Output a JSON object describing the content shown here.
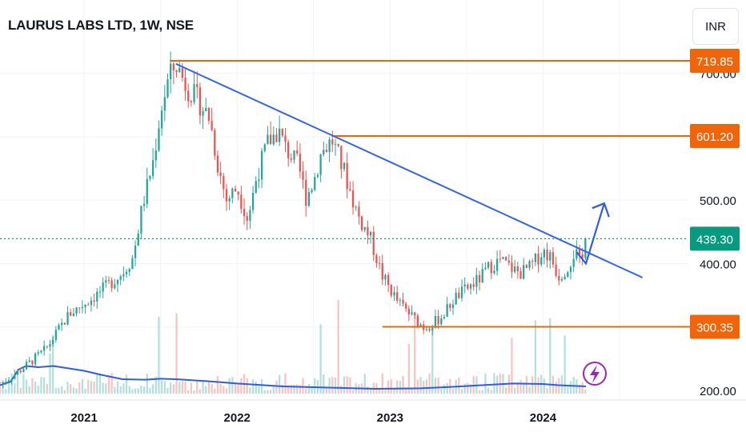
{
  "header": {
    "title": "LAURUS LABS LTD, 1W, NSE",
    "currency": "INR"
  },
  "colors": {
    "up": "#26a69a",
    "down": "#ef5350",
    "level": "#f0650a",
    "trend": "#3466e3",
    "avg": "#2f5ce0",
    "price_tag": "#089981",
    "lightning": "#9c27b0"
  },
  "chart_data": {
    "type": "candlestick",
    "ylim": [
      195,
      740
    ],
    "xlim": [
      2020.45,
      2024.95
    ],
    "y_ticks": [
      "700.00",
      "500.00",
      "400.00",
      "200.00"
    ],
    "x_ticks": [
      {
        "x": 2021.0,
        "label": "2021"
      },
      {
        "x": 2022.0,
        "label": "2022"
      },
      {
        "x": 2023.0,
        "label": "2023"
      },
      {
        "x": 2024.0,
        "label": "2024"
      }
    ],
    "grid": true,
    "price_keypoints": [
      [
        2020.45,
        210
      ],
      [
        2020.6,
        235
      ],
      [
        2020.75,
        265
      ],
      [
        2020.9,
        320
      ],
      [
        2021.05,
        345
      ],
      [
        2021.15,
        365
      ],
      [
        2021.25,
        385
      ],
      [
        2021.32,
        410
      ],
      [
        2021.38,
        490
      ],
      [
        2021.45,
        560
      ],
      [
        2021.5,
        640
      ],
      [
        2021.55,
        690
      ],
      [
        2021.6,
        715
      ],
      [
        2021.67,
        680
      ],
      [
        2021.75,
        655
      ],
      [
        2021.82,
        630
      ],
      [
        2021.87,
        560
      ],
      [
        2021.93,
        500
      ],
      [
        2022.0,
        520
      ],
      [
        2022.07,
        470
      ],
      [
        2022.13,
        540
      ],
      [
        2022.2,
        590
      ],
      [
        2022.27,
        610
      ],
      [
        2022.32,
        580
      ],
      [
        2022.4,
        555
      ],
      [
        2022.45,
        505
      ],
      [
        2022.5,
        530
      ],
      [
        2022.55,
        575
      ],
      [
        2022.62,
        595
      ],
      [
        2022.7,
        545
      ],
      [
        2022.75,
        505
      ],
      [
        2022.8,
        470
      ],
      [
        2022.87,
        440
      ],
      [
        2022.95,
        380
      ],
      [
        2023.05,
        340
      ],
      [
        2023.15,
        315
      ],
      [
        2023.22,
        300
      ],
      [
        2023.28,
        305
      ],
      [
        2023.35,
        320
      ],
      [
        2023.42,
        345
      ],
      [
        2023.5,
        360
      ],
      [
        2023.58,
        375
      ],
      [
        2023.65,
        395
      ],
      [
        2023.72,
        405
      ],
      [
        2023.78,
        395
      ],
      [
        2023.85,
        385
      ],
      [
        2023.92,
        395
      ],
      [
        2024.0,
        420
      ],
      [
        2024.05,
        410
      ],
      [
        2024.1,
        380
      ],
      [
        2024.16,
        395
      ],
      [
        2024.21,
        420
      ],
      [
        2024.25,
        396
      ],
      [
        2024.28,
        439.3
      ]
    ],
    "volume_avg": [
      [
        2020.45,
        0.35
      ],
      [
        2020.52,
        0.5
      ],
      [
        2020.57,
        1.0
      ],
      [
        2020.62,
        1.15
      ],
      [
        2020.7,
        1.1
      ],
      [
        2020.8,
        1.15
      ],
      [
        2020.9,
        1.05
      ],
      [
        2021.0,
        0.95
      ],
      [
        2021.1,
        0.8
      ],
      [
        2021.25,
        0.6
      ],
      [
        2021.4,
        0.58
      ],
      [
        2021.5,
        0.62
      ],
      [
        2021.6,
        0.6
      ],
      [
        2021.8,
        0.52
      ],
      [
        2022.0,
        0.42
      ],
      [
        2022.3,
        0.3
      ],
      [
        2022.6,
        0.25
      ],
      [
        2022.9,
        0.2
      ],
      [
        2023.2,
        0.22
      ],
      [
        2023.4,
        0.28
      ],
      [
        2023.6,
        0.35
      ],
      [
        2023.8,
        0.42
      ],
      [
        2024.0,
        0.4
      ],
      [
        2024.1,
        0.35
      ],
      [
        2024.28,
        0.3
      ]
    ],
    "levels": [
      {
        "label": "719.85",
        "value": 719.85,
        "x_start": 2021.56
      },
      {
        "label": "601.20",
        "value": 601.2,
        "x_start": 2022.62
      },
      {
        "label": "300.35",
        "value": 300.35,
        "x_start": 2022.95
      }
    ],
    "current_price": {
      "label": "439.30",
      "value": 439.3
    },
    "trendline": [
      [
        2021.6,
        715
      ],
      [
        2024.65,
        378
      ]
    ],
    "projection_arrow": [
      [
        2024.22,
        418
      ],
      [
        2024.28,
        400
      ],
      [
        2024.4,
        495
      ]
    ]
  }
}
